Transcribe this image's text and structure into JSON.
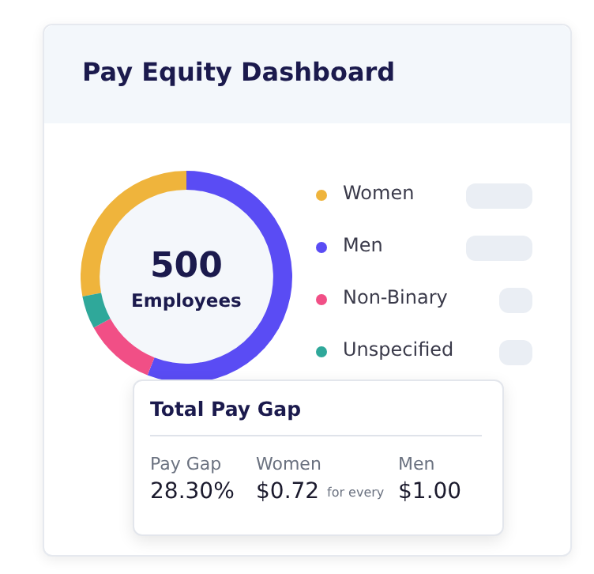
{
  "chart_data": {
    "type": "donut",
    "title": "Pay Equity Dashboard",
    "categories": [
      "Women",
      "Men",
      "Non-Binary",
      "Unspecified"
    ],
    "values": [
      28,
      56,
      11,
      5
    ],
    "colors": [
      "#efb43c",
      "#5a4cf4",
      "#f14f86",
      "#2fa89a"
    ],
    "legend": "right",
    "annotations": [
      "500",
      "Employees",
      "Total Pay Gap",
      "Pay Gap",
      "28.30%",
      "Women",
      "$0.72",
      "for every",
      "Men",
      "$1.00"
    ]
  }
}
